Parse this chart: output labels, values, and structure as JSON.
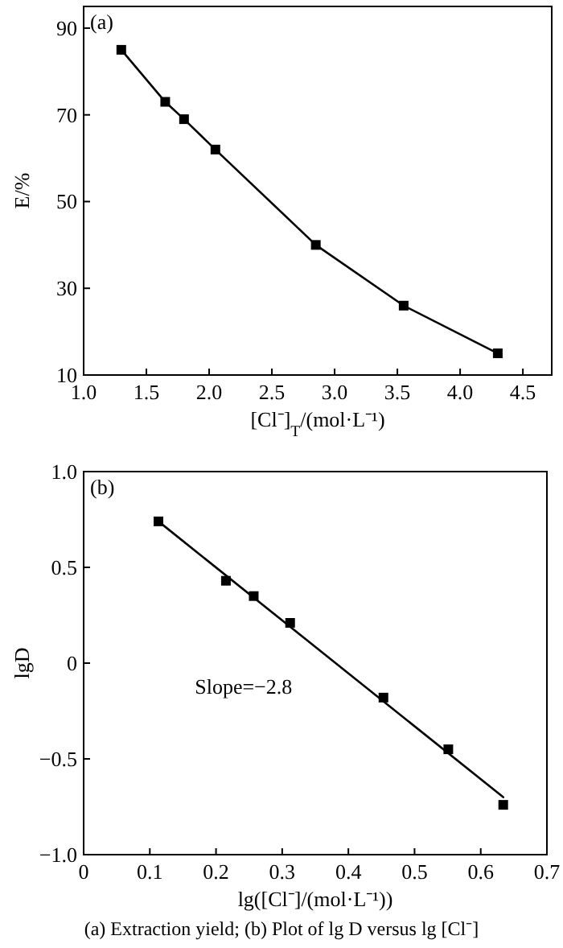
{
  "chart_data": [
    {
      "type": "line",
      "xlabel": "[Cl⁻]$_{T}$/(mol·L⁻¹)",
      "ylabel": "E/%",
      "annotations": [
        "(a)"
      ],
      "xlim": [
        1.0,
        4.73
      ],
      "ylim": [
        10,
        95
      ],
      "xticks": [
        {
          "value": 1,
          "label": "1.0"
        },
        1.5,
        {
          "value": 2,
          "label": "2.0"
        },
        2.5,
        {
          "value": 3,
          "label": "3.0"
        },
        3.5,
        {
          "value": 4,
          "label": "4.0"
        },
        4.5
      ],
      "yticks": [
        10,
        30,
        50,
        70,
        90
      ],
      "grid": false,
      "marker": "square",
      "series": [
        {
          "color": "#000000",
          "x": [
            1.3,
            1.65,
            1.8,
            2.05,
            2.85,
            3.55,
            4.3
          ],
          "values": [
            85,
            73,
            69,
            62,
            40,
            26,
            15
          ]
        }
      ]
    },
    {
      "type": "scatter",
      "xlabel": "lg([Cl⁻]/(mol·L⁻¹))",
      "ylabel": "lgD",
      "annotations": [
        "(b)",
        "Slope=−2.8",
        "(a) Extraction yield; (b) Plot of lg D versus lg [Cl⁻]"
      ],
      "xlim": [
        0,
        0.7
      ],
      "ylim": [
        -1,
        1
      ],
      "xticks": [
        0,
        0.1,
        0.2,
        0.3,
        0.4,
        0.5,
        0.6,
        0.7
      ],
      "yticks": [
        {
          "value": -1,
          "label": "−1.0"
        },
        {
          "value": -0.5,
          "label": "−0.5"
        },
        0,
        0.5,
        {
          "value": 1,
          "label": "1.0"
        }
      ],
      "grid": false,
      "marker": "square",
      "series": [
        {
          "color": "#000000",
          "x": [
            0.113,
            0.215,
            0.257,
            0.312,
            0.453,
            0.551,
            0.634
          ],
          "values": [
            0.74,
            0.43,
            0.35,
            0.21,
            -0.18,
            -0.45,
            -0.74
          ]
        },
        {
          "type": "line",
          "marker": "none",
          "color": "#000000",
          "x": [
            0.113,
            0.634
          ],
          "values": [
            0.74,
            -0.7
          ]
        }
      ]
    }
  ]
}
